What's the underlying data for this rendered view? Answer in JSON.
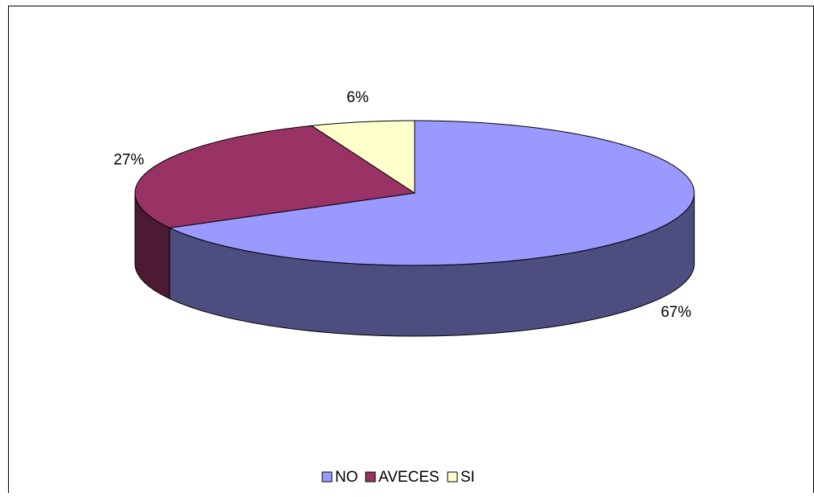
{
  "chart_data": {
    "type": "pie",
    "categories": [
      "NO",
      "AVECES",
      "SI"
    ],
    "values": [
      67,
      27,
      6
    ],
    "value_labels": [
      "67%",
      "27%",
      "6%"
    ],
    "colors": [
      "#9999ff",
      "#993366",
      "#ffffcc"
    ],
    "legend": "bottom"
  }
}
